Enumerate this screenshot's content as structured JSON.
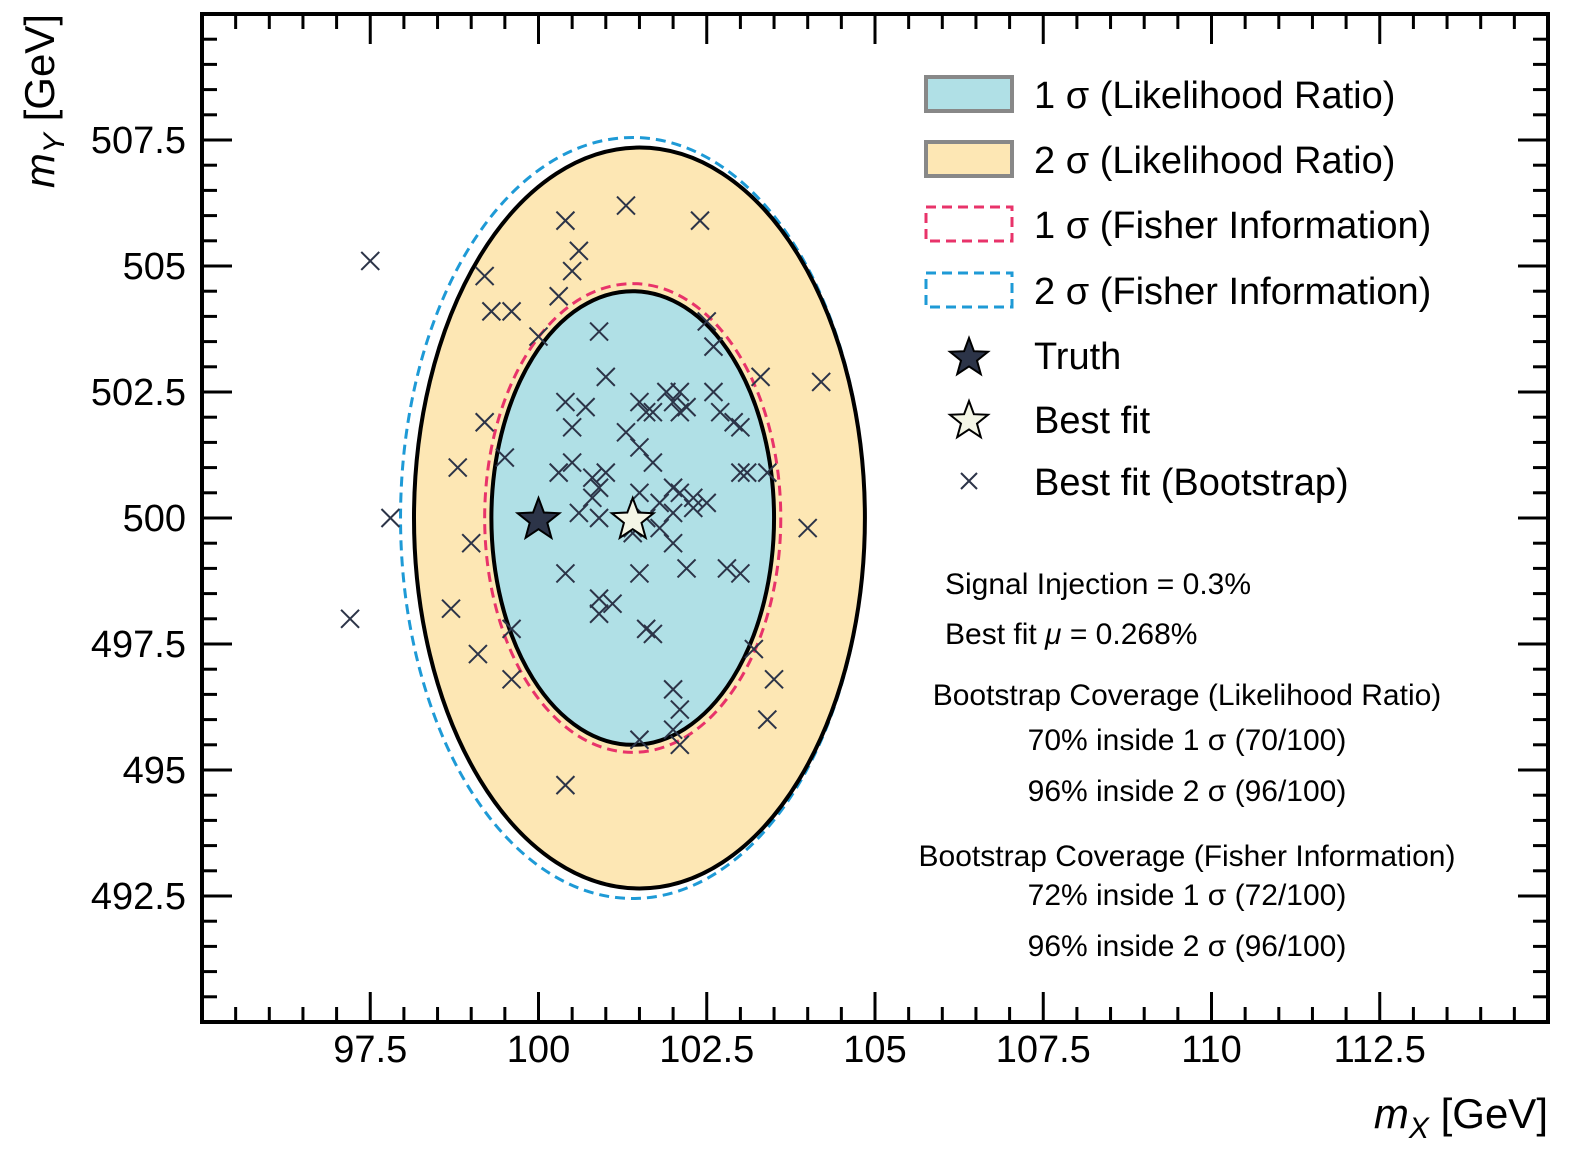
{
  "chart_data": {
    "type": "scatter",
    "title": "",
    "xlabel_var": "m",
    "xlabel_sub": "X",
    "xlabel_unit": "[GeV]",
    "ylabel_var": "m",
    "ylabel_sub": "Y",
    "ylabel_unit": "[GeV]",
    "xlim": [
      95,
      115
    ],
    "ylim": [
      490,
      510
    ],
    "x_ticks": [
      97.5,
      100,
      102.5,
      105,
      107.5,
      110,
      112.5
    ],
    "x_tick_labels": [
      "97.5",
      "100",
      "102.5",
      "105",
      "107.5",
      "110",
      "112.5"
    ],
    "y_ticks": [
      492.5,
      495,
      497.5,
      500,
      502.5,
      505,
      507.5
    ],
    "y_tick_labels": [
      "492.5",
      "495",
      "497.5",
      "500",
      "502.5",
      "505",
      "507.5"
    ],
    "grid": false,
    "legend_position": "top-right",
    "colors": {
      "lr_1sigma_fill": "#b0e0e6",
      "lr_2sigma_fill": "#fde7b4",
      "fisher_1sigma": "#e8336a",
      "fisher_2sigma": "#1e9ad6",
      "contour_line": "#000000",
      "marker": "#2c3448",
      "best_fit_star": "#f4f6e6"
    },
    "contours": [
      {
        "name": "2 σ (Likelihood Ratio)",
        "center": [
          101.5,
          500.0
        ],
        "radius_x": 3.35,
        "radius_y": 7.35
      },
      {
        "name": "1 σ (Likelihood Ratio)",
        "center": [
          101.4,
          500.0
        ],
        "radius_x": 2.1,
        "radius_y": 4.5
      },
      {
        "name": "1 σ (Fisher Information)",
        "center": [
          101.4,
          500.0
        ],
        "radius_x": 2.2,
        "radius_y": 4.65
      },
      {
        "name": "2 σ (Fisher Information)",
        "center": [
          101.4,
          500.0
        ],
        "radius_x": 3.45,
        "radius_y": 7.55
      }
    ],
    "truth": [
      100.0,
      500.0
    ],
    "best_fit": [
      101.4,
      500.0
    ],
    "bootstrap_points": [
      [
        97.2,
        498.0
      ],
      [
        97.5,
        505.1
      ],
      [
        97.8,
        500.0
      ],
      [
        98.7,
        498.2
      ],
      [
        98.8,
        501.0
      ],
      [
        99.0,
        499.5
      ],
      [
        99.1,
        497.3
      ],
      [
        99.2,
        501.9
      ],
      [
        99.2,
        504.8
      ],
      [
        99.3,
        504.1
      ],
      [
        99.5,
        501.2
      ],
      [
        99.6,
        504.1
      ],
      [
        99.6,
        497.8
      ],
      [
        99.6,
        496.8
      ],
      [
        100.0,
        503.6
      ],
      [
        100.0,
        499.9
      ],
      [
        100.3,
        500.9
      ],
      [
        100.3,
        504.4
      ],
      [
        100.4,
        494.7
      ],
      [
        100.4,
        505.9
      ],
      [
        100.4,
        502.3
      ],
      [
        100.4,
        498.9
      ],
      [
        100.5,
        504.9
      ],
      [
        100.5,
        501.8
      ],
      [
        100.5,
        501.1
      ],
      [
        100.6,
        505.3
      ],
      [
        100.6,
        500.1
      ],
      [
        100.7,
        502.2
      ],
      [
        100.8,
        500.8
      ],
      [
        100.8,
        500.4
      ],
      [
        100.9,
        498.4
      ],
      [
        100.9,
        498.1
      ],
      [
        100.9,
        500.6
      ],
      [
        100.9,
        500.0
      ],
      [
        100.9,
        503.7
      ],
      [
        101.0,
        500.9
      ],
      [
        101.0,
        502.8
      ],
      [
        101.1,
        498.3
      ],
      [
        101.3,
        501.7
      ],
      [
        101.3,
        506.2
      ],
      [
        101.4,
        499.7
      ],
      [
        101.4,
        499.8
      ],
      [
        101.5,
        502.3
      ],
      [
        101.5,
        501.4
      ],
      [
        101.5,
        498.9
      ],
      [
        101.5,
        495.6
      ],
      [
        101.5,
        500.5
      ],
      [
        101.6,
        500.0
      ],
      [
        101.6,
        502.1
      ],
      [
        101.6,
        497.8
      ],
      [
        101.7,
        502.1
      ],
      [
        101.7,
        501.1
      ],
      [
        101.7,
        497.7
      ],
      [
        101.8,
        500.3
      ],
      [
        101.8,
        499.8
      ],
      [
        101.9,
        502.5
      ],
      [
        102.0,
        502.3
      ],
      [
        102.0,
        500.6
      ],
      [
        102.0,
        500.1
      ],
      [
        102.0,
        499.5
      ],
      [
        102.0,
        496.6
      ],
      [
        102.0,
        495.8
      ],
      [
        102.1,
        502.5
      ],
      [
        102.1,
        502.1
      ],
      [
        102.1,
        500.5
      ],
      [
        102.1,
        495.5
      ],
      [
        102.1,
        496.2
      ],
      [
        102.2,
        502.2
      ],
      [
        102.2,
        499.0
      ],
      [
        102.3,
        500.2
      ],
      [
        102.3,
        500.4
      ],
      [
        102.4,
        505.9
      ],
      [
        102.5,
        503.9
      ],
      [
        102.5,
        500.3
      ],
      [
        102.6,
        502.5
      ],
      [
        102.6,
        503.4
      ],
      [
        102.7,
        502.1
      ],
      [
        102.8,
        499.0
      ],
      [
        102.9,
        501.9
      ],
      [
        103.0,
        498.9
      ],
      [
        103.0,
        500.9
      ],
      [
        103.0,
        501.8
      ],
      [
        103.1,
        500.9
      ],
      [
        103.2,
        497.4
      ],
      [
        103.3,
        502.8
      ],
      [
        103.4,
        500.9
      ],
      [
        103.4,
        496.0
      ],
      [
        103.5,
        496.8
      ],
      [
        104.0,
        499.8
      ],
      [
        104.2,
        502.7
      ]
    ],
    "legend": [
      {
        "kind": "patch-fill",
        "label": "1 σ (Likelihood Ratio)"
      },
      {
        "kind": "patch-fill",
        "label": "2 σ (Likelihood Ratio)"
      },
      {
        "kind": "patch-dashed",
        "label": "1 σ (Fisher Information)"
      },
      {
        "kind": "patch-dashed",
        "label": "2 σ (Fisher Information)"
      },
      {
        "kind": "star-dark",
        "label": "Truth"
      },
      {
        "kind": "star-light",
        "label": "Best fit"
      },
      {
        "kind": "cross",
        "label": "Best fit (Bootstrap)"
      }
    ],
    "annotations": {
      "signal_injection": "Signal Injection = 0.3%",
      "best_fit_mu_prefix": "Best fit ",
      "best_fit_mu_symbol": "μ",
      "best_fit_mu_value": " = 0.268%",
      "coverage_lr_title": "Bootstrap Coverage (Likelihood Ratio)",
      "coverage_lr_1sigma": "70% inside 1 σ (70/100)",
      "coverage_lr_2sigma": "96% inside 2 σ (96/100)",
      "coverage_fisher_title": "Bootstrap Coverage (Fisher Information)",
      "coverage_fisher_1sigma": "72% inside 1 σ (72/100)",
      "coverage_fisher_2sigma": "96% inside 2 σ (96/100)"
    }
  }
}
